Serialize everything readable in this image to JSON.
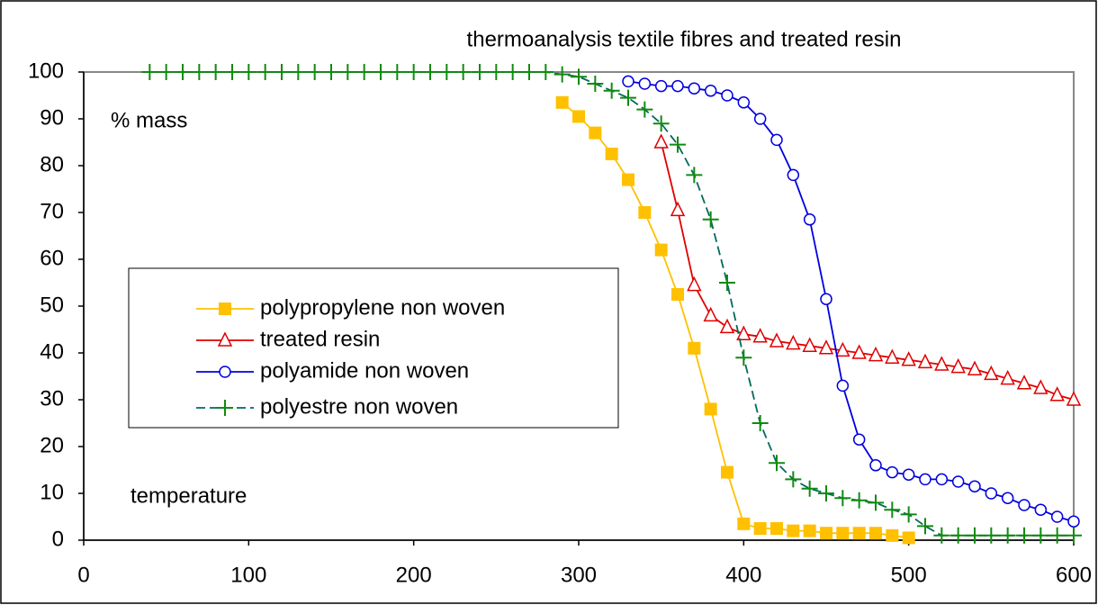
{
  "chart_data": {
    "type": "line",
    "title": "thermoanalysis textile fibres and treated resin",
    "y_annotation": "% mass",
    "x_annotation": "temperature",
    "xlim": [
      0,
      600
    ],
    "xticks": [
      0,
      100,
      200,
      300,
      400,
      500,
      600
    ],
    "ylim": [
      0,
      100
    ],
    "yticks": [
      0,
      10,
      20,
      30,
      40,
      50,
      60,
      70,
      80,
      90,
      100
    ],
    "grid": false,
    "legend": "left",
    "series": [
      {
        "name": "polypropylene non woven",
        "color": "#ffc000",
        "marker": "square",
        "dashed": false,
        "x": [
          290,
          300,
          310,
          320,
          330,
          340,
          350,
          360,
          370,
          380,
          390,
          400,
          410,
          420,
          430,
          440,
          450,
          460,
          470,
          480,
          490,
          500
        ],
        "values": [
          93.5,
          90.5,
          87,
          82.5,
          77,
          70,
          62,
          52.5,
          41,
          28,
          14.5,
          3.5,
          2.5,
          2.5,
          2,
          2,
          1.5,
          1.5,
          1.5,
          1.5,
          1,
          0.5
        ]
      },
      {
        "name": "treated resin",
        "color": "#e00000",
        "marker": "triangle",
        "dashed": false,
        "x": [
          350,
          360,
          370,
          380,
          390,
          400,
          410,
          420,
          430,
          440,
          450,
          460,
          470,
          480,
          490,
          500,
          510,
          520,
          530,
          540,
          550,
          560,
          570,
          580,
          590,
          600
        ],
        "values": [
          85,
          70.5,
          54.5,
          48,
          45.5,
          44,
          43.5,
          42.5,
          42,
          41.5,
          41,
          40.5,
          40,
          39.5,
          39,
          38.5,
          38,
          37.5,
          37,
          36.5,
          35.5,
          34.5,
          33.5,
          32.5,
          31,
          30
        ]
      },
      {
        "name": "polyamide non woven",
        "color": "#0000e0",
        "marker": "circle",
        "dashed": false,
        "x": [
          330,
          340,
          350,
          360,
          370,
          380,
          390,
          400,
          410,
          420,
          430,
          440,
          450,
          460,
          470,
          480,
          490,
          500,
          510,
          520,
          530,
          540,
          550,
          560,
          570,
          580,
          590,
          600
        ],
        "values": [
          98,
          97.5,
          97,
          97,
          96.5,
          96,
          95,
          93.5,
          90,
          85.5,
          78,
          68.5,
          51.5,
          33,
          21.5,
          16,
          14.5,
          14,
          13,
          13,
          12.5,
          11.5,
          10,
          9,
          7.5,
          6.5,
          5,
          4
        ]
      },
      {
        "name": "polyestre non woven",
        "color": "#108a10",
        "marker": "plus",
        "dashed": true,
        "x": [
          40,
          50,
          60,
          70,
          80,
          90,
          100,
          110,
          120,
          130,
          140,
          150,
          160,
          170,
          180,
          190,
          200,
          210,
          220,
          230,
          240,
          250,
          260,
          270,
          280,
          290,
          300,
          310,
          320,
          330,
          340,
          350,
          360,
          370,
          380,
          390,
          400,
          410,
          420,
          430,
          440,
          450,
          460,
          470,
          480,
          490,
          500,
          510,
          520,
          530,
          540,
          550,
          560,
          570,
          580,
          590,
          600
        ],
        "values": [
          100,
          100,
          100,
          100,
          100,
          100,
          100,
          100,
          100,
          100,
          100,
          100,
          100,
          100,
          100,
          100,
          100,
          100,
          100,
          100,
          100,
          100,
          100,
          100,
          100,
          99.5,
          99,
          97.5,
          96,
          94.5,
          92,
          89,
          84.5,
          78,
          68.5,
          55,
          39,
          25,
          16.5,
          13,
          11,
          10,
          9,
          8.5,
          8,
          6.5,
          5.5,
          3,
          1,
          1,
          1,
          1,
          1,
          1,
          1,
          1,
          1
        ]
      }
    ]
  }
}
